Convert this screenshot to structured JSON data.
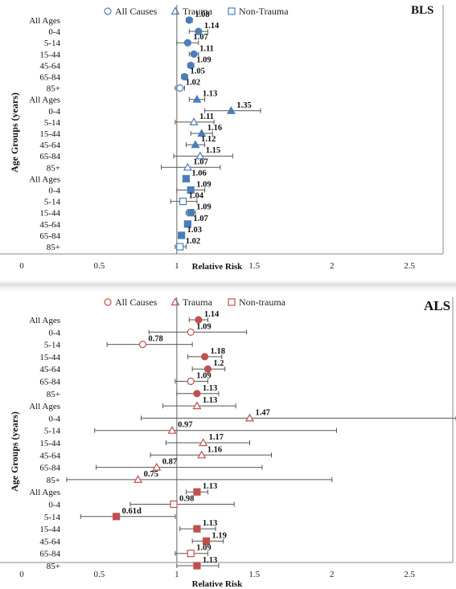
{
  "colors": {
    "bls_marker": "#4a7eba",
    "als_marker": "#c0504d",
    "error_bar": "#555555",
    "axis": "#888888"
  },
  "chart_data": [
    {
      "type": "scatter",
      "title": "BLS",
      "xlabel": "Relative Risk",
      "ylabel": "Age Groups (years)",
      "xlim": [
        0,
        2.8
      ],
      "xticks": [
        "0",
        "0.5",
        "1",
        "1.5",
        "2",
        "2.5"
      ],
      "legend": {
        "placement": "top",
        "entries": [
          {
            "name": "All Causes",
            "marker": "circle"
          },
          {
            "name": "Trauma",
            "marker": "triangle"
          },
          {
            "name": "Non-Trauma",
            "marker": "square"
          }
        ]
      },
      "categories": [
        "All Ages",
        "0-4",
        "5-14",
        "15-44",
        "45-64",
        "65-84",
        "85+"
      ],
      "series": [
        {
          "name": "All Causes",
          "marker": "circle",
          "values": [
            1.08,
            1.14,
            1.07,
            1.11,
            1.09,
            1.05,
            1.02
          ],
          "filled": [
            true,
            true,
            true,
            true,
            true,
            true,
            false
          ],
          "labels": [
            "1.08",
            "1.14",
            "1.07",
            "1.11",
            "1.09",
            "1.05",
            "1.02"
          ],
          "ci": [
            [
              1.06,
              1.1
            ],
            [
              1.08,
              1.2
            ],
            [
              1.0,
              1.14
            ],
            [
              1.08,
              1.14
            ],
            [
              1.07,
              1.11
            ],
            [
              1.03,
              1.07
            ],
            [
              0.99,
              1.05
            ]
          ]
        },
        {
          "name": "Trauma",
          "marker": "triangle",
          "values": [
            1.13,
            1.35,
            1.11,
            1.16,
            1.12,
            1.15,
            1.07
          ],
          "filled": [
            true,
            true,
            false,
            true,
            true,
            false,
            false
          ],
          "labels": [
            "1.13",
            "1.35",
            "1.11",
            "1.16",
            "1.12",
            "1.15",
            "1.07"
          ],
          "ci": [
            [
              1.08,
              1.18
            ],
            [
              1.18,
              1.54
            ],
            [
              0.99,
              1.24
            ],
            [
              1.09,
              1.23
            ],
            [
              1.06,
              1.18
            ],
            [
              0.98,
              1.36
            ],
            [
              0.9,
              1.28
            ]
          ]
        },
        {
          "name": "Non-Trauma",
          "marker": "square",
          "values": [
            1.06,
            1.09,
            1.04,
            1.09,
            1.07,
            1.03,
            1.02
          ],
          "filled": [
            true,
            true,
            false,
            true,
            true,
            true,
            false
          ],
          "labels": [
            "1.06",
            "1.09",
            "1.04",
            "1.09",
            "1.07",
            "1.03",
            "1.02"
          ],
          "ci": [
            [
              1.04,
              1.08
            ],
            [
              1.0,
              1.18
            ],
            [
              0.96,
              1.13
            ],
            [
              1.06,
              1.12
            ],
            [
              1.05,
              1.09
            ],
            [
              1.01,
              1.05
            ],
            [
              0.99,
              1.06
            ]
          ]
        }
      ]
    },
    {
      "type": "scatter",
      "title": "ALS",
      "xlabel": "Relative Risk",
      "ylabel": "Age Groups (years)",
      "xlim": [
        0,
        2.8
      ],
      "xticks": [
        "0",
        "0.5",
        "1",
        "1.5",
        "2",
        "2.5"
      ],
      "legend": {
        "placement": "top",
        "entries": [
          {
            "name": "All Causes",
            "marker": "circle"
          },
          {
            "name": "Trauma",
            "marker": "triangle"
          },
          {
            "name": "Non-trauma",
            "marker": "square"
          }
        ]
      },
      "categories": [
        "All Ages",
        "0-4",
        "5-14",
        "15-44",
        "45-64",
        "65-84",
        "85+"
      ],
      "series": [
        {
          "name": "All Causes",
          "marker": "circle",
          "values": [
            1.14,
            1.09,
            0.78,
            1.18,
            1.2,
            1.09,
            1.13
          ],
          "filled": [
            true,
            false,
            false,
            true,
            true,
            false,
            true
          ],
          "labels": [
            "1.14",
            "1.09",
            "0.78",
            "1.18",
            "1.2",
            "1.09",
            "1.13"
          ],
          "ci": [
            [
              1.08,
              1.2
            ],
            [
              0.82,
              1.45
            ],
            [
              0.55,
              1.1
            ],
            [
              1.07,
              1.29
            ],
            [
              1.1,
              1.31
            ],
            [
              0.99,
              1.2
            ],
            [
              1.0,
              1.27
            ]
          ]
        },
        {
          "name": "Trauma",
          "marker": "triangle",
          "values": [
            1.13,
            1.47,
            0.97,
            1.17,
            1.16,
            0.87,
            0.75
          ],
          "filled": [
            false,
            false,
            false,
            false,
            false,
            false,
            false
          ],
          "labels": [
            "1.13",
            "1.47",
            "0.97",
            "1.17",
            "1.16",
            "0.87",
            "0.75"
          ],
          "ci": [
            [
              0.91,
              1.38
            ],
            [
              0.77,
              2.8
            ],
            [
              0.47,
              2.03
            ],
            [
              0.93,
              1.47
            ],
            [
              0.83,
              1.61
            ],
            [
              0.48,
              1.55
            ],
            [
              0.29,
              2.0
            ]
          ]
        },
        {
          "name": "Non-trauma",
          "marker": "square",
          "values": [
            1.13,
            0.98,
            0.61,
            1.13,
            1.19,
            1.09,
            1.13
          ],
          "filled": [
            true,
            false,
            true,
            true,
            true,
            false,
            true
          ],
          "labels": [
            "1.13",
            "0.98",
            "0.61d",
            "1.13",
            "1.19",
            "1.09",
            "1.13"
          ],
          "ci": [
            [
              1.06,
              1.2
            ],
            [
              0.7,
              1.37
            ],
            [
              0.38,
              0.99
            ],
            [
              1.02,
              1.25
            ],
            [
              1.1,
              1.3
            ],
            [
              0.99,
              1.2
            ],
            [
              1.0,
              1.27
            ]
          ]
        }
      ]
    }
  ]
}
